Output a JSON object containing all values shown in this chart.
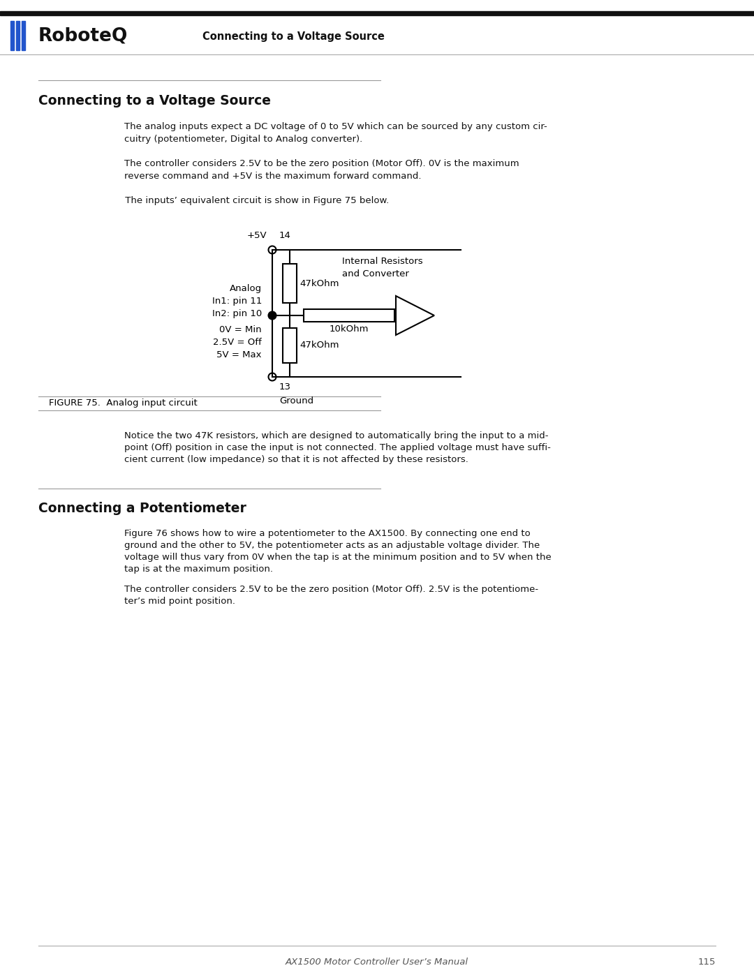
{
  "page_title_header": "Connecting to a Voltage Source",
  "section1_title": "Connecting to a Voltage Source",
  "section1_para1a": "The analog inputs expect a DC voltage of 0 to 5V which can be sourced by any custom cir-",
  "section1_para1b": "cuitry (potentiometer, Digital to Analog converter).",
  "section1_para2a": "The controller considers 2.5V to be the zero position (Motor Off). 0V is the maximum",
  "section1_para2b": "reverse command and +5V is the maximum forward command.",
  "section1_para3": " The inputs’ equivalent circuit is show in Figure 75 below.",
  "figure_caption": "FIGURE 75.  Analog input circuit",
  "notice_line1": "Notice the two 47K resistors, which are designed to automatically bring the input to a mid-",
  "notice_line2": "point (Off) position in case the input is not connected. The applied voltage must have suffi-",
  "notice_line3": "cient current (low impedance) so that it is not affected by these resistors.",
  "section2_title": "Connecting a Potentiometer",
  "s2p1_line1": "Figure 76 shows how to wire a potentiometer to the AX1500. By connecting one end to",
  "s2p1_line2": "ground and the other to 5V, the potentiometer acts as an adjustable voltage divider. The",
  "s2p1_line3": "voltage will thus vary from 0V when the tap is at the minimum position and to 5V when the",
  "s2p1_line4": "tap is at the maximum position.",
  "s2p2_line1": "The controller considers 2.5V to be the zero position (Motor Off). 2.5V is the potentiome-",
  "s2p2_line2": "ter’s mid point position.",
  "footer_text": "AX1500 Motor Controller User’s Manual",
  "footer_page": "115",
  "bg_color": "#ffffff",
  "blue_color": "#2255cc"
}
